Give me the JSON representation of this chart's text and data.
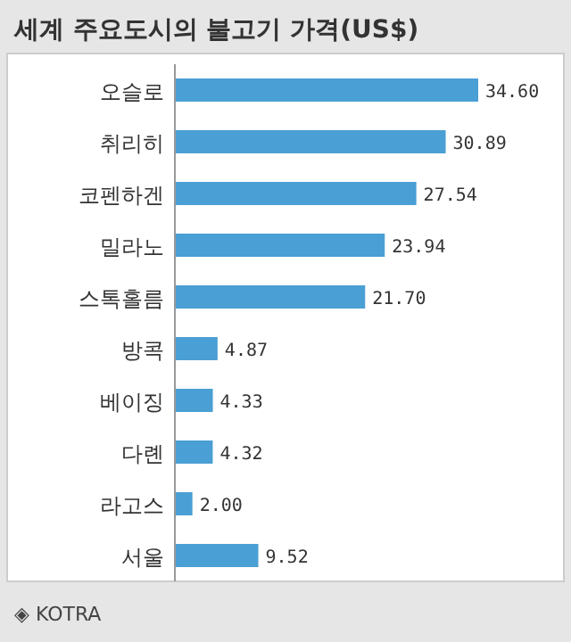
{
  "chart_data": {
    "type": "bar",
    "orientation": "horizontal",
    "title": "세계 주요도시의 불고기 가격(US$)",
    "categories": [
      "오슬로",
      "취리히",
      "코펜하겐",
      "밀라노",
      "스톡홀름",
      "방콕",
      "베이징",
      "다롄",
      "라고스",
      "서울"
    ],
    "values": [
      34.6,
      30.89,
      27.54,
      23.94,
      21.7,
      4.87,
      4.33,
      4.32,
      2.0,
      9.52
    ],
    "value_labels": [
      "34.60",
      "30.89",
      "27.54",
      "23.94",
      "21.70",
      "4.87",
      "4.33",
      "4.32",
      "2.00",
      "9.52"
    ],
    "color": "#4a9fd4",
    "annotations": [
      "◈ KOTRA"
    ]
  }
}
